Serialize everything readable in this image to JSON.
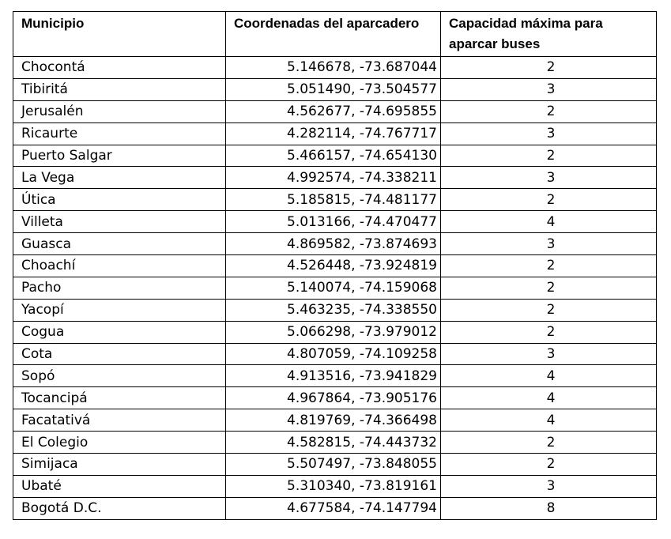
{
  "table": {
    "headers": [
      "Municipio",
      "Coordenadas del aparcadero",
      "Capacidad máxima para aparcar buses"
    ],
    "rows": [
      [
        "Chocontá",
        "5.146678, -73.687044",
        "2"
      ],
      [
        "Tibiritá",
        "5.051490, -73.504577",
        "3"
      ],
      [
        "Jerusalén",
        "4.562677, -74.695855",
        "2"
      ],
      [
        "Ricaurte",
        "4.282114, -74.767717",
        "3"
      ],
      [
        "Puerto Salgar",
        "5.466157, -74.654130",
        "2"
      ],
      [
        "La Vega",
        "4.992574, -74.338211",
        "3"
      ],
      [
        "Útica",
        "5.185815, -74.481177",
        "2"
      ],
      [
        "Villeta",
        "5.013166, -74.470477",
        "4"
      ],
      [
        "Guasca",
        "4.869582, -73.874693",
        "3"
      ],
      [
        "Choachí",
        "4.526448, -73.924819",
        "2"
      ],
      [
        "Pacho",
        "5.140074, -74.159068",
        "2"
      ],
      [
        "Yacopí",
        "5.463235, -74.338550",
        "2"
      ],
      [
        "Cogua",
        "5.066298, -73.979012",
        "2"
      ],
      [
        "Cota",
        "4.807059, -74.109258",
        "3"
      ],
      [
        "Sopó",
        "4.913516, -73.941829",
        "4"
      ],
      [
        "Tocancipá",
        "4.967864, -73.905176",
        "4"
      ],
      [
        "Facatativá",
        "4.819769, -74.366498",
        "4"
      ],
      [
        "El Colegio",
        "4.582815, -74.443732",
        "2"
      ],
      [
        "Simijaca",
        "5.507497, -73.848055",
        "2"
      ],
      [
        "Ubaté",
        "5.310340, -73.819161",
        "3"
      ],
      [
        "Bogotá D.C.",
        "4.677584, -74.147794",
        "8"
      ]
    ]
  }
}
